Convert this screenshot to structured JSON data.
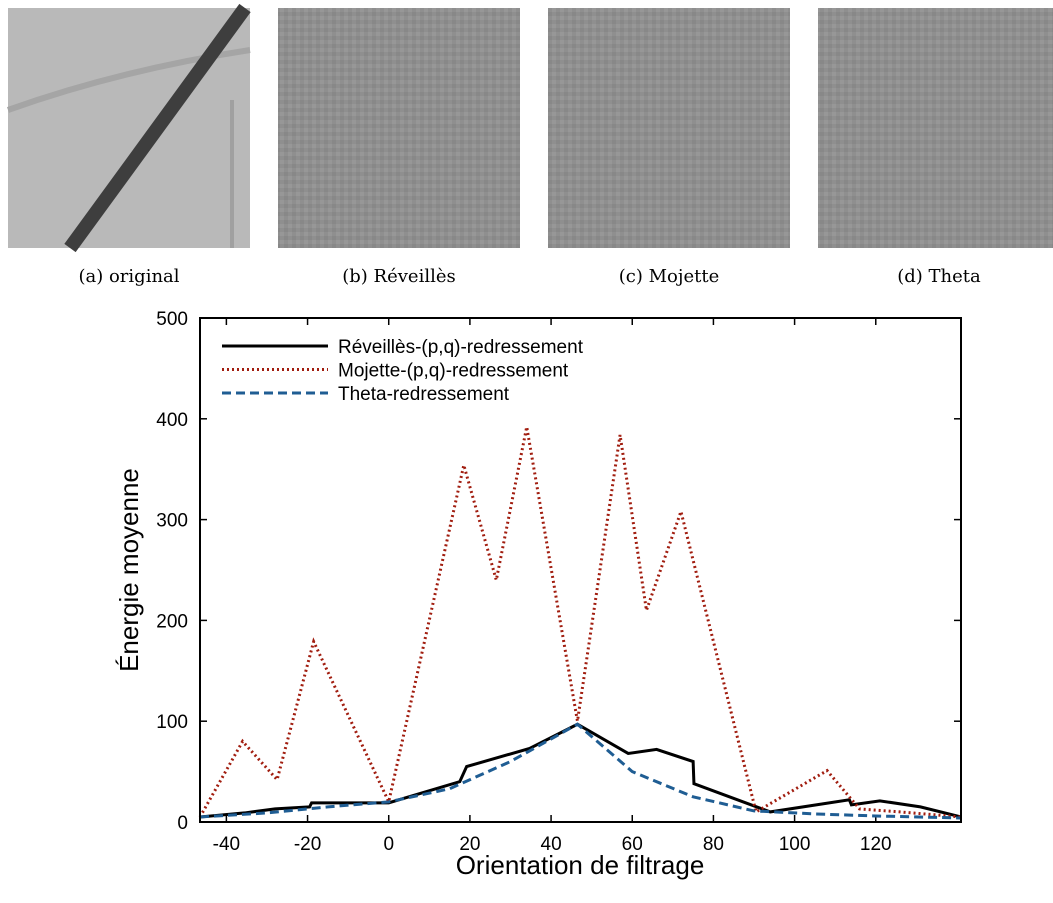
{
  "panels": [
    {
      "caption": "(a) original"
    },
    {
      "caption": "(b) Réveillès"
    },
    {
      "caption": "(c) Mojette"
    },
    {
      "caption": "(d) Theta"
    }
  ],
  "chart_data": {
    "type": "line",
    "xlabel": "Orientation de filtrage",
    "ylabel": "Énergie moyenne",
    "xlim": [
      -46.5,
      141
    ],
    "ylim": [
      0,
      500
    ],
    "xticks": [
      -40,
      -20,
      0,
      20,
      40,
      60,
      80,
      100,
      120
    ],
    "yticks": [
      0,
      100,
      200,
      300,
      400,
      500
    ],
    "legend": "upper left",
    "series": [
      {
        "name": "Réveillès-(p,q)-redressement",
        "color": "#000000",
        "dash": "solid",
        "x": [
          -46.5,
          -35.5,
          -28,
          -19.5,
          -19,
          0,
          17.5,
          19.2,
          34.7,
          46.5,
          59,
          66,
          75,
          75.2,
          94,
          113.5,
          114,
          121,
          131,
          141
        ],
        "values": [
          5,
          9,
          13,
          15,
          19,
          19,
          40,
          55,
          73,
          97,
          68,
          72,
          60,
          38,
          10,
          22,
          17,
          21,
          15,
          5
        ]
      },
      {
        "name": "Mojette-(p,q)-redressement",
        "color": "#a11d0f",
        "dash": "dotted",
        "x": [
          -46.5,
          -36,
          -27.5,
          -18.5,
          0,
          18.5,
          26.5,
          34,
          46.5,
          57,
          63.5,
          72,
          90.5,
          108,
          116,
          126,
          141
        ],
        "values": [
          5,
          80,
          42,
          179,
          20,
          354,
          240,
          392,
          100,
          384,
          210,
          308,
          10,
          51,
          13,
          10,
          5
        ]
      },
      {
        "name": "Theta-redressement",
        "color": "#1f5d93",
        "dash": "dashed",
        "x": [
          -46.5,
          -30,
          -15,
          0,
          15,
          30,
          46.5,
          60,
          75,
          90,
          105,
          120,
          141
        ],
        "values": [
          5,
          9,
          15,
          20,
          33,
          60,
          97,
          50,
          25,
          11,
          8,
          6,
          4
        ]
      }
    ]
  }
}
